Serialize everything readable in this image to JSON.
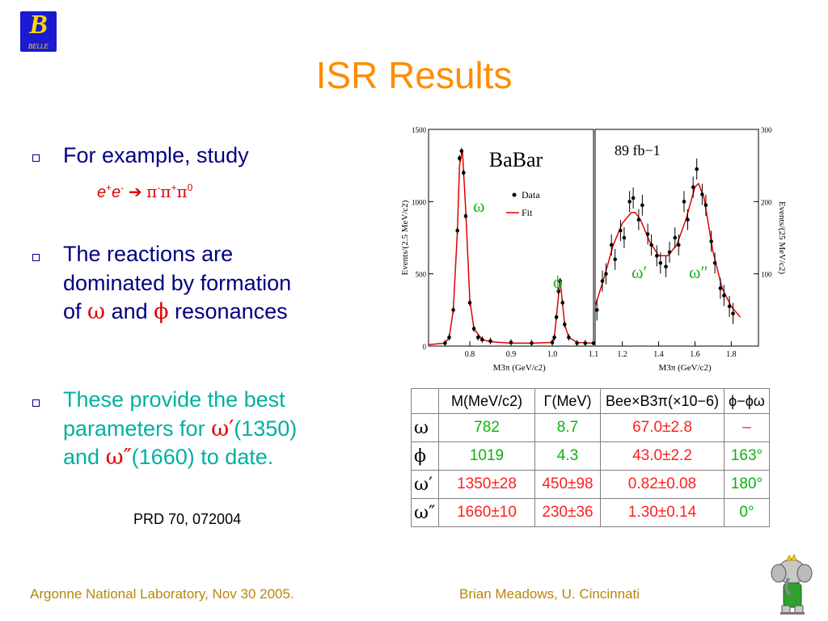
{
  "title": "ISR Results",
  "logo": {
    "letter": "B",
    "text": "BELLE"
  },
  "bullets": [
    {
      "text": "For example, study"
    },
    {
      "lines": [
        "The reactions are",
        "dominated by formation"
      ],
      "line3_a": "of ",
      "omega": "ω",
      "line3_b": " and ",
      "phi": "ϕ",
      "line3_c": " resonances"
    },
    {
      "line1": "These provide the best",
      "line2_a": "parameters for ",
      "sym2": "ω′",
      "line2_b": "(1350)",
      "line3_a": "and ",
      "sym3": "ω″",
      "line3_b": "(1660) to date."
    }
  ],
  "reaction": {
    "e1": "e",
    "sup1": "+",
    "e2": "e",
    "sup2": "-",
    "arrow": "➔",
    "pi1": "π",
    "s1": "-",
    "pi2": "π",
    "s2": "+",
    "pi3": "π",
    "s3": "0"
  },
  "reference": "PRD 70, 072004",
  "footer": {
    "left": "Argonne National Laboratory, Nov 30 2005.",
    "right": "Brian Meadows, U. Cincinnati"
  },
  "chart_data": [
    {
      "type": "scatter",
      "title": "BaBar",
      "xlabel": "M3π (GeV/c2)",
      "ylabel": "Events/(2.5 MeV/c2)",
      "xlim": [
        0.7,
        1.1
      ],
      "ylim": [
        0,
        1500
      ],
      "xticks": [
        "0.8",
        "0.9",
        "1.0",
        "1.1"
      ],
      "yticks": [
        "0",
        "500",
        "1000",
        "1500"
      ],
      "legend": [
        "Data",
        "Fit"
      ],
      "annotations": [
        "ω",
        "ϕ"
      ],
      "series": [
        {
          "name": "Data",
          "x": [
            0.74,
            0.75,
            0.76,
            0.77,
            0.775,
            0.78,
            0.785,
            0.79,
            0.8,
            0.81,
            0.82,
            0.83,
            0.85,
            0.9,
            0.95,
            1.0,
            1.005,
            1.01,
            1.015,
            1.019,
            1.025,
            1.03,
            1.04,
            1.06,
            1.08,
            1.1
          ],
          "y": [
            20,
            60,
            250,
            800,
            1300,
            1350,
            1200,
            900,
            300,
            120,
            60,
            45,
            35,
            25,
            20,
            25,
            60,
            200,
            380,
            450,
            300,
            150,
            60,
            20,
            20,
            20
          ]
        },
        {
          "name": "Fit",
          "x": [
            0.7,
            0.74,
            0.75,
            0.76,
            0.77,
            0.775,
            0.782,
            0.79,
            0.8,
            0.81,
            0.83,
            0.85,
            0.9,
            0.95,
            1.0,
            1.005,
            1.01,
            1.019,
            1.03,
            1.04,
            1.06,
            1.1
          ],
          "y": [
            10,
            20,
            60,
            250,
            800,
            1250,
            1360,
            950,
            320,
            120,
            45,
            30,
            20,
            20,
            25,
            60,
            200,
            460,
            150,
            60,
            25,
            20
          ]
        }
      ]
    },
    {
      "type": "scatter",
      "title": "89 fb−1",
      "xlabel": "M3π (GeV/c2)",
      "ylabel": "Events/(25 MeV/c2)",
      "xlim": [
        1.05,
        1.95
      ],
      "ylim": [
        0,
        300
      ],
      "xticks": [
        "1.2",
        "1.4",
        "1.6",
        "1.8"
      ],
      "yticks": [
        "100",
        "200",
        "300"
      ],
      "annotations": [
        "ω′",
        "ω″"
      ],
      "series": [
        {
          "name": "Data",
          "x": [
            1.06,
            1.09,
            1.11,
            1.14,
            1.16,
            1.19,
            1.21,
            1.24,
            1.26,
            1.29,
            1.31,
            1.34,
            1.36,
            1.39,
            1.41,
            1.44,
            1.46,
            1.49,
            1.51,
            1.54,
            1.56,
            1.59,
            1.61,
            1.64,
            1.66,
            1.69,
            1.71,
            1.74,
            1.76,
            1.79,
            1.81
          ],
          "y": [
            50,
            90,
            100,
            140,
            120,
            160,
            150,
            200,
            205,
            175,
            195,
            155,
            140,
            125,
            115,
            110,
            130,
            150,
            140,
            200,
            175,
            220,
            245,
            210,
            195,
            145,
            115,
            80,
            70,
            55,
            45
          ]
        },
        {
          "name": "Fit",
          "x": [
            1.05,
            1.1,
            1.15,
            1.2,
            1.25,
            1.27,
            1.3,
            1.35,
            1.4,
            1.45,
            1.5,
            1.55,
            1.6,
            1.62,
            1.65,
            1.7,
            1.75,
            1.8,
            1.85
          ],
          "y": [
            55,
            95,
            140,
            170,
            185,
            185,
            175,
            145,
            125,
            125,
            140,
            175,
            220,
            225,
            205,
            130,
            80,
            55,
            40
          ]
        }
      ]
    }
  ],
  "table": {
    "headers": [
      "",
      "M(MeV/c2)",
      "Γ(MeV)",
      "Bee×B3π(×10−6)",
      "ϕ−ϕω"
    ],
    "rows": [
      {
        "sym": "ω",
        "m": "782",
        "g": "8.7",
        "b": "67.0±2.8",
        "p": "–"
      },
      {
        "sym": "ϕ",
        "m": "1019",
        "g": "4.3",
        "b": "43.0±2.2",
        "p": "163°"
      },
      {
        "sym": "ω′",
        "m": "1350±28",
        "g": "450±98",
        "b": "0.82±0.08",
        "p": "180°"
      },
      {
        "sym": "ω″",
        "m": "1660±10",
        "g": "230±36",
        "b": "1.30±0.14",
        "p": "0°"
      }
    ]
  },
  "colors": {
    "title": "#ff8c00",
    "text": "#000080",
    "highlight": "#00b0a0",
    "accent": "#e00000",
    "footer": "#b8860b",
    "fit": "#e00000"
  }
}
